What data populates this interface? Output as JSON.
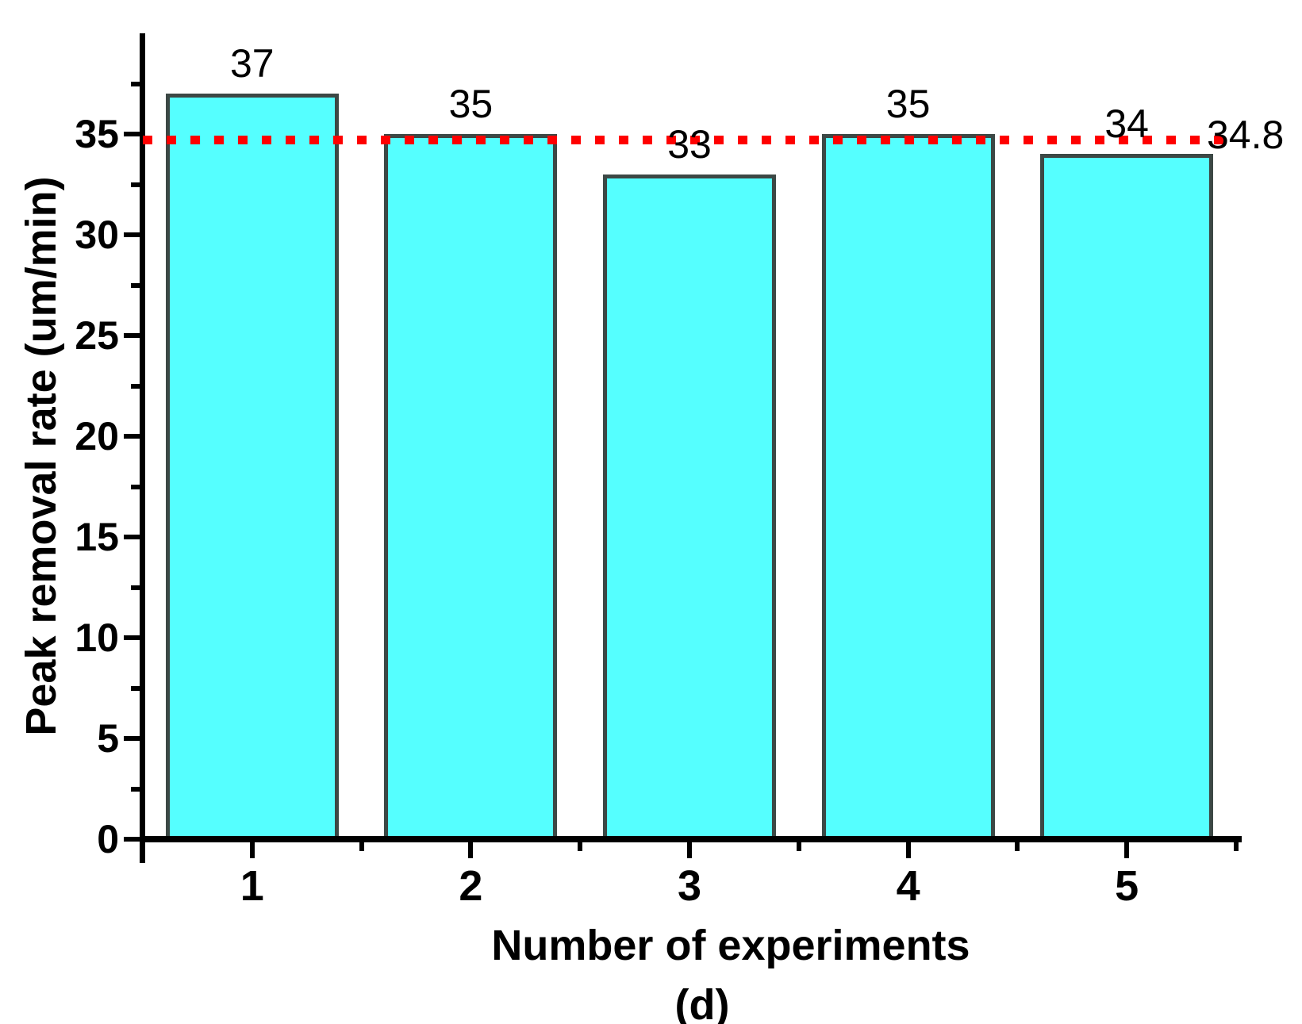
{
  "figure": {
    "caption": "(d)"
  },
  "chart_data": {
    "type": "bar",
    "title": "",
    "xlabel": "Number of experiments",
    "ylabel": "Peak removal rate (um/min)",
    "categories": [
      "1",
      "2",
      "3",
      "4",
      "5"
    ],
    "values": [
      37,
      35,
      33,
      35,
      34
    ],
    "bar_labels": [
      "37",
      "35",
      "33",
      "35",
      "34"
    ],
    "xlim": [
      0.5,
      5.5
    ],
    "ylim": [
      0,
      40
    ],
    "y_major_ticks": [
      0,
      5,
      10,
      15,
      20,
      25,
      30,
      35
    ],
    "y_minor_ticks": [
      2.5,
      7.5,
      12.5,
      17.5,
      22.5,
      27.5,
      32.5,
      37.5
    ],
    "x_minor_ticks": [
      1.5,
      2.5,
      3.5,
      4.5,
      5.5
    ],
    "reference_line": {
      "value": 34.8,
      "label": "34.8",
      "color": "#ff0000",
      "style": "dotted"
    },
    "grid": "off",
    "legend": "none",
    "bar_width_ratio": 0.79,
    "colors": {
      "bar_fill": "#55ffff",
      "bar_border": "#3c4845",
      "axis": "#000000",
      "text": "#000000"
    }
  }
}
